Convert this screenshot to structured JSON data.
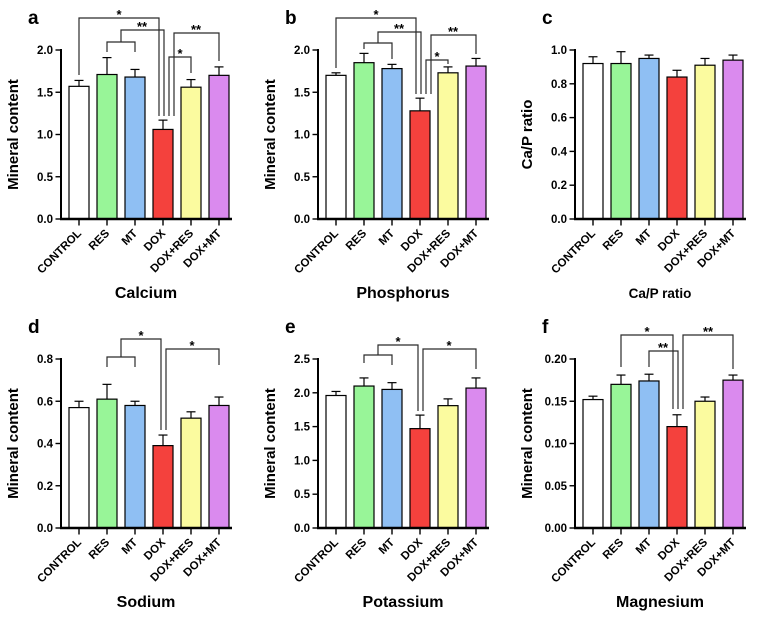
{
  "style": {
    "background": "#FFFFFF",
    "bar_fill_colors": [
      "#FFFFFF",
      "#98F598",
      "#8FBFF3",
      "#F4413D",
      "#FBFB9F",
      "#DA8AEE"
    ],
    "bar_border_color": "#000000",
    "axis_color": "#000000",
    "bracket_color": "#2B2B2B",
    "text_color": "#000000"
  },
  "chart_data": [
    {
      "type": "bar",
      "panel": "a",
      "title": "Calcium",
      "ylabel": "Mineral content",
      "categories": [
        "CONTROL",
        "RES",
        "MT",
        "DOX",
        "DOX+RES",
        "DOX+MT"
      ],
      "values": [
        1.57,
        1.71,
        1.68,
        1.06,
        1.56,
        1.7
      ],
      "errors": [
        0.07,
        0.2,
        0.09,
        0.11,
        0.09,
        0.1
      ],
      "ylim": [
        0,
        2.0
      ],
      "yticks": [
        0,
        0.5,
        1.0,
        1.5,
        2.0
      ],
      "ytick_labels": [
        "0.0",
        "0.5",
        "1.0",
        "1.5",
        "2.0"
      ],
      "grid": false,
      "legend": "none",
      "significance": [
        {
          "label": "*",
          "groups": [
            "CONTROL",
            "DOX"
          ],
          "lines": [
            [
              [
                79,
                75
              ],
              [
                79,
                18
              ],
              [
                159,
                18
              ],
              [
                159,
                116
              ]
            ]
          ],
          "label_xy": [
            119,
            19
          ]
        },
        {
          "label": "**",
          "groups": [
            [
              "RES",
              "MT"
            ],
            "DOX"
          ],
          "lines": [
            [
              [
                107,
                52
              ],
              [
                107,
                42
              ],
              [
                135,
                42
              ],
              [
                135,
                52
              ]
            ],
            [
              [
                121,
                42
              ],
              [
                121,
                30
              ],
              [
                164,
                30
              ],
              [
                164,
                116
              ]
            ]
          ],
          "label_xy": [
            142,
            31
          ]
        },
        {
          "label": "*",
          "groups": [
            "DOX",
            "DOX+RES"
          ],
          "lines": [
            [
              [
                169,
                116
              ],
              [
                169,
                57
              ],
              [
                191,
                57
              ],
              [
                191,
                73
              ]
            ]
          ],
          "label_xy": [
            180,
            58
          ]
        },
        {
          "label": "**",
          "groups": [
            "DOX",
            "DOX+MT"
          ],
          "lines": [
            [
              [
                174,
                116
              ],
              [
                174,
                33
              ],
              [
                219,
                33
              ],
              [
                219,
                61
              ]
            ]
          ],
          "label_xy": [
            196,
            34
          ]
        }
      ]
    },
    {
      "type": "bar",
      "panel": "b",
      "title": "Phosphorus",
      "ylabel": "Mineral content",
      "categories": [
        "CONTROL",
        "RES",
        "MT",
        "DOX",
        "DOX+RES",
        "DOX+MT"
      ],
      "values": [
        1.7,
        1.85,
        1.78,
        1.28,
        1.73,
        1.81
      ],
      "errors": [
        0.03,
        0.11,
        0.05,
        0.15,
        0.07,
        0.09
      ],
      "ylim": [
        0,
        2.0
      ],
      "yticks": [
        0,
        0.5,
        1.0,
        1.5,
        2.0
      ],
      "ytick_labels": [
        "0.0",
        "0.5",
        "1.0",
        "1.5",
        "2.0"
      ],
      "grid": false,
      "legend": "none",
      "significance": [
        {
          "label": "*",
          "groups": [
            "CONTROL",
            "DOX"
          ],
          "lines": [
            [
              [
                79,
                68
              ],
              [
                79,
                18
              ],
              [
                159,
                18
              ],
              [
                159,
                94
              ]
            ]
          ],
          "label_xy": [
            119,
            19
          ]
        },
        {
          "label": "**",
          "groups": [
            [
              "RES",
              "MT"
            ],
            "DOX"
          ],
          "lines": [
            [
              [
                107,
                49
              ],
              [
                107,
                43
              ],
              [
                135,
                43
              ],
              [
                135,
                59
              ]
            ],
            [
              [
                121,
                43
              ],
              [
                121,
                32
              ],
              [
                164,
                32
              ],
              [
                164,
                94
              ]
            ]
          ],
          "label_xy": [
            142,
            33
          ]
        },
        {
          "label": "*",
          "groups": [
            "DOX",
            "DOX+RES"
          ],
          "lines": [
            [
              [
                169,
                94
              ],
              [
                169,
                60
              ],
              [
                191,
                60
              ],
              [
                191,
                64
              ]
            ]
          ],
          "label_xy": [
            180,
            61
          ]
        },
        {
          "label": "**",
          "groups": [
            "DOX",
            "DOX+MT"
          ],
          "lines": [
            [
              [
                174,
                94
              ],
              [
                174,
                35
              ],
              [
                219,
                35
              ],
              [
                219,
                54
              ]
            ]
          ],
          "label_xy": [
            196,
            36
          ]
        }
      ]
    },
    {
      "type": "bar",
      "panel": "c",
      "title": "Ca/P ratio",
      "title_style": "small",
      "ylabel": "Ca/P ratio",
      "categories": [
        "CONTROL",
        "RES",
        "MT",
        "DOX",
        "DOX+RES",
        "DOX+MT"
      ],
      "values": [
        0.92,
        0.92,
        0.95,
        0.84,
        0.91,
        0.94
      ],
      "errors": [
        0.04,
        0.07,
        0.02,
        0.04,
        0.04,
        0.03
      ],
      "ylim": [
        0,
        1.0
      ],
      "yticks": [
        0,
        0.2,
        0.4,
        0.6,
        0.8,
        1.0
      ],
      "ytick_labels": [
        "0.0",
        "0.2",
        "0.4",
        "0.6",
        "0.8",
        "1.0"
      ],
      "grid": false,
      "legend": "none",
      "significance": []
    },
    {
      "type": "bar",
      "panel": "d",
      "title": "Sodium",
      "ylabel": "Mineral content",
      "categories": [
        "CONTROL",
        "RES",
        "MT",
        "DOX",
        "DOX+RES",
        "DOX+MT"
      ],
      "values": [
        0.57,
        0.61,
        0.58,
        0.39,
        0.52,
        0.58
      ],
      "errors": [
        0.03,
        0.07,
        0.02,
        0.05,
        0.03,
        0.04
      ],
      "ylim": [
        0,
        0.8
      ],
      "yticks": [
        0,
        0.2,
        0.4,
        0.6,
        0.8
      ],
      "ytick_labels": [
        "0.0",
        "0.2",
        "0.4",
        "0.6",
        "0.8"
      ],
      "grid": false,
      "legend": "none",
      "significance": [
        {
          "label": "*",
          "groups": [
            [
              "RES",
              "MT"
            ],
            "DOX"
          ],
          "lines": [
            [
              [
                107,
                58
              ],
              [
                107,
                48
              ],
              [
                135,
                48
              ],
              [
                135,
                58
              ]
            ],
            [
              [
                121,
                48
              ],
              [
                121,
                30
              ],
              [
                161,
                30
              ],
              [
                161,
                121
              ]
            ]
          ],
          "label_xy": [
            141,
            31
          ]
        },
        {
          "label": "*",
          "groups": [
            "DOX",
            "DOX+MT"
          ],
          "lines": [
            [
              [
                166,
                121
              ],
              [
                166,
                40
              ],
              [
                219,
                40
              ],
              [
                219,
                56
              ]
            ]
          ],
          "label_xy": [
            192,
            41
          ]
        }
      ]
    },
    {
      "type": "bar",
      "panel": "e",
      "title": "Potassium",
      "ylabel": "Mineral content",
      "categories": [
        "CONTROL",
        "RES",
        "MT",
        "DOX",
        "DOX+RES",
        "DOX+MT"
      ],
      "values": [
        1.96,
        2.1,
        2.05,
        1.47,
        1.81,
        2.07
      ],
      "errors": [
        0.06,
        0.12,
        0.1,
        0.2,
        0.1,
        0.15
      ],
      "ylim": [
        0,
        2.5
      ],
      "yticks": [
        0,
        0.5,
        1.0,
        1.5,
        2.0,
        2.5
      ],
      "ytick_labels": [
        "0.0",
        "0.5",
        "1.0",
        "1.5",
        "2.0",
        "2.5"
      ],
      "grid": false,
      "legend": "none",
      "significance": [
        {
          "label": "*",
          "groups": [
            [
              "RES",
              "MT"
            ],
            "DOX"
          ],
          "lines": [
            [
              [
                107,
                54
              ],
              [
                107,
                46
              ],
              [
                135,
                46
              ],
              [
                135,
                56
              ]
            ],
            [
              [
                121,
                46
              ],
              [
                121,
                36
              ],
              [
                161,
                36
              ],
              [
                161,
                102
              ]
            ]
          ],
          "label_xy": [
            141,
            37
          ]
        },
        {
          "label": "*",
          "groups": [
            "DOX",
            "DOX+MT"
          ],
          "lines": [
            [
              [
                166,
                102
              ],
              [
                166,
                40
              ],
              [
                219,
                40
              ],
              [
                219,
                60
              ]
            ]
          ],
          "label_xy": [
            192,
            41
          ]
        }
      ]
    },
    {
      "type": "bar",
      "panel": "f",
      "title": "Magnesium",
      "ylabel": "Mineral content",
      "categories": [
        "CONTROL",
        "RES",
        "MT",
        "DOX",
        "DOX+RES",
        "DOX+MT"
      ],
      "values": [
        0.152,
        0.17,
        0.174,
        0.12,
        0.15,
        0.175
      ],
      "errors": [
        0.004,
        0.011,
        0.008,
        0.014,
        0.005,
        0.006
      ],
      "ylim": [
        0,
        0.2
      ],
      "yticks": [
        0,
        0.05,
        0.1,
        0.15,
        0.2
      ],
      "ytick_labels": [
        "0.00",
        "0.05",
        "0.10",
        "0.15",
        "0.20"
      ],
      "grid": false,
      "legend": "none",
      "significance": [
        {
          "label": "*",
          "groups": [
            "RES",
            "DOX"
          ],
          "lines": [
            [
              [
                107,
                58
              ],
              [
                107,
                26
              ],
              [
                159,
                26
              ],
              [
                159,
                100
              ]
            ]
          ],
          "label_xy": [
            133,
            27
          ]
        },
        {
          "label": "**",
          "groups": [
            "MT",
            "DOX"
          ],
          "lines": [
            [
              [
                135,
                58
              ],
              [
                135,
                42
              ],
              [
                164,
                42
              ],
              [
                164,
                100
              ]
            ]
          ],
          "label_xy": [
            149,
            43
          ]
        },
        {
          "label": "**",
          "groups": [
            "DOX",
            "DOX+MT"
          ],
          "lines": [
            [
              [
                169,
                100
              ],
              [
                169,
                26
              ],
              [
                219,
                26
              ],
              [
                219,
                60
              ]
            ]
          ],
          "label_xy": [
            194,
            27
          ]
        }
      ]
    }
  ]
}
